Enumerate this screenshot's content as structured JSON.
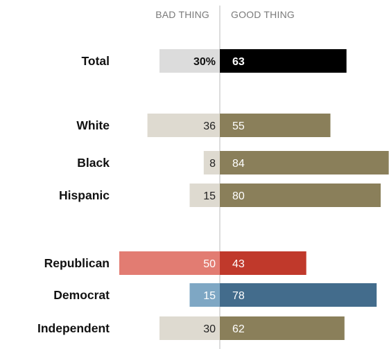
{
  "chart_data": {
    "type": "bar",
    "orientation": "horizontal-diverging",
    "headers": {
      "left": "BAD THING",
      "right": "GOOD THING"
    },
    "xlim": [
      -52,
      85
    ],
    "rows": [
      {
        "label": "Total",
        "bad": 30,
        "good": 63,
        "bad_text": "30%",
        "good_text": "63",
        "bad_color": "#dcdcdc",
        "good_color": "#000000",
        "bad_text_color": "#111111",
        "good_text_color": "#ffffff",
        "bold": true
      },
      {
        "label": "White",
        "bad": 36,
        "good": 55,
        "bad_text": "36",
        "good_text": "55",
        "bad_color": "#dedad0",
        "good_color": "#8a7f5a",
        "bad_text_color": "#222222",
        "good_text_color": "#ffffff",
        "bold": false
      },
      {
        "label": "Black",
        "bad": 8,
        "good": 84,
        "bad_text": "8",
        "good_text": "84",
        "bad_color": "#dedad0",
        "good_color": "#8a7f5a",
        "bad_text_color": "#222222",
        "good_text_color": "#ffffff",
        "bold": false
      },
      {
        "label": "Hispanic",
        "bad": 15,
        "good": 80,
        "bad_text": "15",
        "good_text": "80",
        "bad_color": "#dedad0",
        "good_color": "#8a7f5a",
        "bad_text_color": "#222222",
        "good_text_color": "#ffffff",
        "bold": false
      },
      {
        "label": "Republican",
        "bad": 50,
        "good": 43,
        "bad_text": "50",
        "good_text": "43",
        "bad_color": "#e27c72",
        "good_color": "#c0392b",
        "bad_text_color": "#ffffff",
        "good_text_color": "#ffffff",
        "bold": false
      },
      {
        "label": "Democrat",
        "bad": 15,
        "good": 78,
        "bad_text": "15",
        "good_text": "78",
        "bad_color": "#7ea7c4",
        "good_color": "#436c8c",
        "bad_text_color": "#ffffff",
        "good_text_color": "#ffffff",
        "bold": false
      },
      {
        "label": "Independent",
        "bad": 30,
        "good": 62,
        "bad_text": "30",
        "good_text": "62",
        "bad_color": "#dedad0",
        "good_color": "#8a7f5a",
        "bad_text_color": "#222222",
        "good_text_color": "#ffffff",
        "bold": false
      }
    ],
    "divider_color": "#bbbbbb"
  }
}
